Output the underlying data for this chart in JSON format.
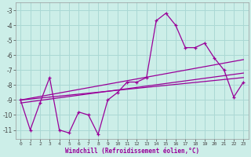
{
  "xlabel": "Windchill (Refroidissement éolien,°C)",
  "background_color": "#cceee8",
  "grid_color": "#aad8d4",
  "line_color": "#990099",
  "x_values": [
    0,
    1,
    2,
    3,
    4,
    5,
    6,
    7,
    8,
    9,
    10,
    11,
    12,
    13,
    14,
    15,
    16,
    17,
    18,
    19,
    20,
    21,
    22,
    23
  ],
  "windchill": [
    -9.0,
    -11.0,
    -9.2,
    -7.5,
    -11.0,
    -11.2,
    -9.8,
    -10.0,
    -11.3,
    -9.0,
    -8.5,
    -7.8,
    -7.8,
    -7.5,
    -3.7,
    -3.2,
    -4.0,
    -5.5,
    -5.5,
    -5.2,
    -6.2,
    -7.0,
    -8.8,
    -7.8
  ],
  "trend1_x": [
    0,
    23
  ],
  "trend1_y": [
    -9.0,
    -7.5
  ],
  "trend2_x": [
    0,
    23
  ],
  "trend2_y": [
    -9.2,
    -7.2
  ],
  "trend3_x": [
    0,
    23
  ],
  "trend3_y": [
    -9.0,
    -6.3
  ],
  "ylim": [
    -11.6,
    -2.5
  ],
  "xlim": [
    -0.5,
    23.5
  ],
  "yticks": [
    -11,
    -10,
    -9,
    -8,
    -7,
    -6,
    -5,
    -4,
    -3
  ]
}
